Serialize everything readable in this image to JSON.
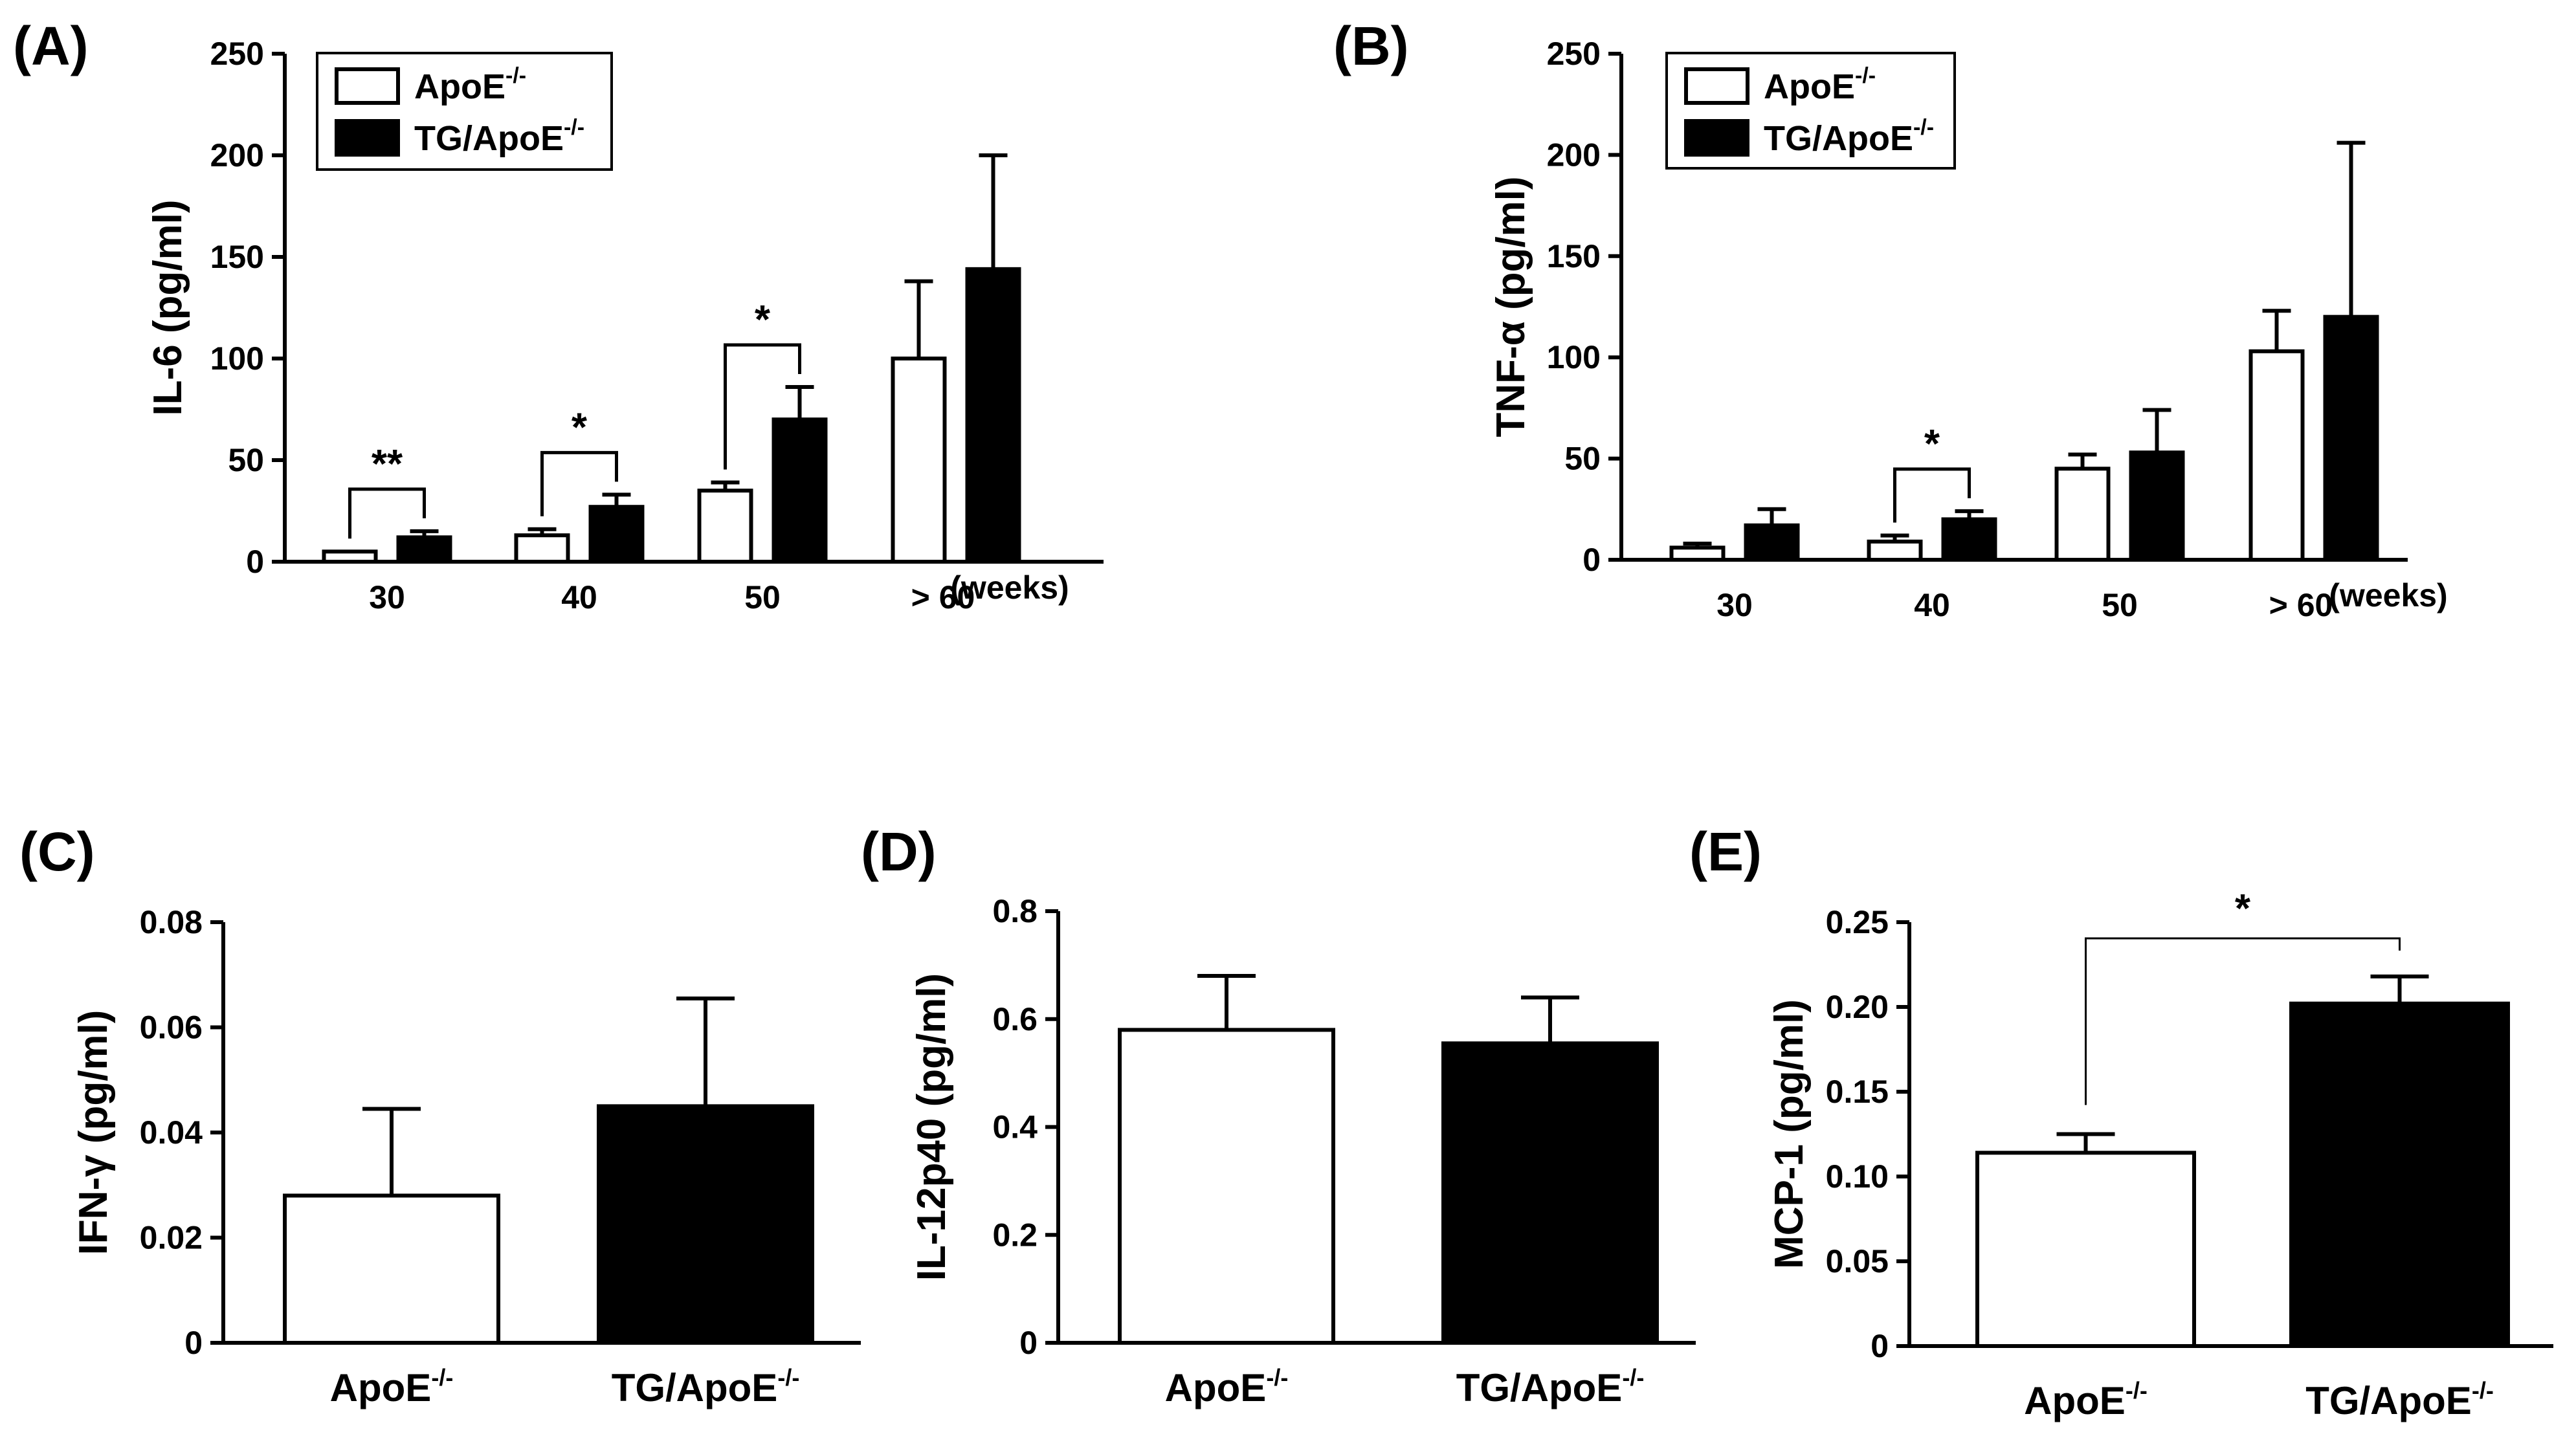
{
  "colors": {
    "fill_apoe": "#ffffff",
    "fill_tg": "#000000",
    "stroke": "#000000"
  },
  "legend": [
    {
      "base": "ApoE",
      "sup": "-/-"
    },
    {
      "base": "TG/ApoE",
      "sup": "-/-"
    }
  ],
  "chart_data": [
    {
      "id": "A",
      "panel": "(A)",
      "type": "bar",
      "ylabel": "IL-6 (pg/ml)",
      "ylim": [
        0,
        250
      ],
      "yticks": [
        "0",
        "50",
        "100",
        "150",
        "200",
        "250"
      ],
      "categories": [
        "30",
        "40",
        "50",
        "> 60"
      ],
      "xunit": "(weeks)",
      "series": [
        {
          "name": "ApoE-/-",
          "values": [
            5,
            13,
            35,
            100
          ],
          "errors": [
            0,
            3,
            4,
            38
          ]
        },
        {
          "name": "TG/ApoE-/-",
          "values": [
            12,
            27,
            70,
            144
          ],
          "errors": [
            3,
            6,
            16,
            56
          ]
        }
      ],
      "significance": [
        {
          "category": 0,
          "label": "**"
        },
        {
          "category": 1,
          "label": "*"
        },
        {
          "category": 2,
          "label": "*"
        }
      ]
    },
    {
      "id": "B",
      "panel": "(B)",
      "type": "bar",
      "ylabel": "TNF-α (pg/ml)",
      "ylim": [
        0,
        250
      ],
      "yticks": [
        "0",
        "50",
        "100",
        "150",
        "200",
        "250"
      ],
      "categories": [
        "30",
        "40",
        "50",
        "> 60"
      ],
      "xunit": "(weeks)",
      "series": [
        {
          "name": "ApoE-/-",
          "values": [
            6,
            9,
            45,
            103
          ],
          "errors": [
            2,
            3,
            7,
            20
          ]
        },
        {
          "name": "TG/ApoE-/-",
          "values": [
            17,
            20,
            53,
            120
          ],
          "errors": [
            8,
            4,
            21,
            86
          ]
        }
      ],
      "significance": [
        {
          "category": 1,
          "label": "*"
        }
      ]
    },
    {
      "id": "C",
      "panel": "(C)",
      "type": "bar",
      "ylabel": "IFN-γ (pg/ml)",
      "ylim": [
        0,
        0.08
      ],
      "yticks": [
        "0",
        "0.02",
        "0.04",
        "0.06",
        "0.08"
      ],
      "categories": [
        {
          "base": "ApoE",
          "sup": "-/-"
        },
        {
          "base": "TG/ApoE",
          "sup": "-/-"
        }
      ],
      "values": [
        0.028,
        0.045
      ],
      "errors": [
        0.0165,
        0.0205
      ],
      "significance": []
    },
    {
      "id": "D",
      "panel": "(D)",
      "type": "bar",
      "ylabel": "IL-12p40 (pg/ml)",
      "ylim": [
        0,
        0.8
      ],
      "yticks": [
        "0",
        "0.2",
        "0.4",
        "0.6",
        "0.8"
      ],
      "categories": [
        {
          "base": "ApoE",
          "sup": "-/-"
        },
        {
          "base": "TG/ApoE",
          "sup": "-/-"
        }
      ],
      "values": [
        0.58,
        0.555
      ],
      "errors": [
        0.1,
        0.085
      ],
      "significance": []
    },
    {
      "id": "E",
      "panel": "(E)",
      "type": "bar",
      "ylabel": "MCP-1 (pg/ml)",
      "ylim": [
        0,
        0.25
      ],
      "yticks": [
        "0",
        "0.05",
        "0.10",
        "0.15",
        "0.20",
        "0.25"
      ],
      "categories": [
        {
          "base": "ApoE",
          "sup": "-/-"
        },
        {
          "base": "TG/ApoE",
          "sup": "-/-"
        }
      ],
      "values": [
        0.114,
        0.202
      ],
      "errors": [
        0.011,
        0.016
      ],
      "significance": [
        {
          "label": "*",
          "between": [
            0,
            1
          ]
        }
      ]
    }
  ]
}
